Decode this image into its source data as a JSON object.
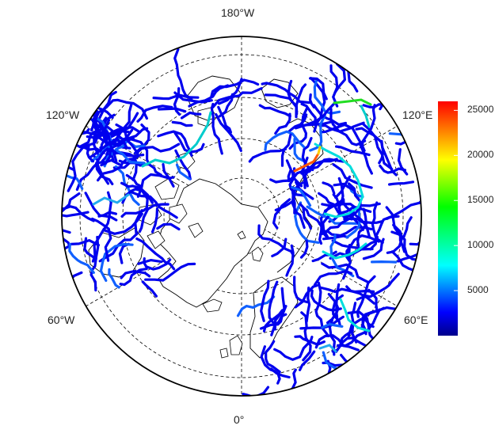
{
  "map": {
    "projection": "north-polar-stereographic",
    "longitude_labels": {
      "top": "180°W",
      "bottom": "0°",
      "upper_left": "120°W",
      "upper_right": "120°E",
      "lower_left": "60°W",
      "lower_right": "60°E"
    },
    "colors": {
      "frame": "#000000",
      "coastline": "#000000",
      "graticule": "#000000",
      "river_low": "#0000ff"
    }
  },
  "colorbar": {
    "min": 0,
    "max": 26000,
    "ticks": [
      "25000",
      "20000",
      "15000",
      "10000",
      "5000"
    ],
    "tick_values": [
      25000,
      20000,
      15000,
      10000,
      5000
    ],
    "colors": [
      "#00008b",
      "#0000ff",
      "#00ffff",
      "#00ff00",
      "#ffff00",
      "#ff0000"
    ]
  }
}
